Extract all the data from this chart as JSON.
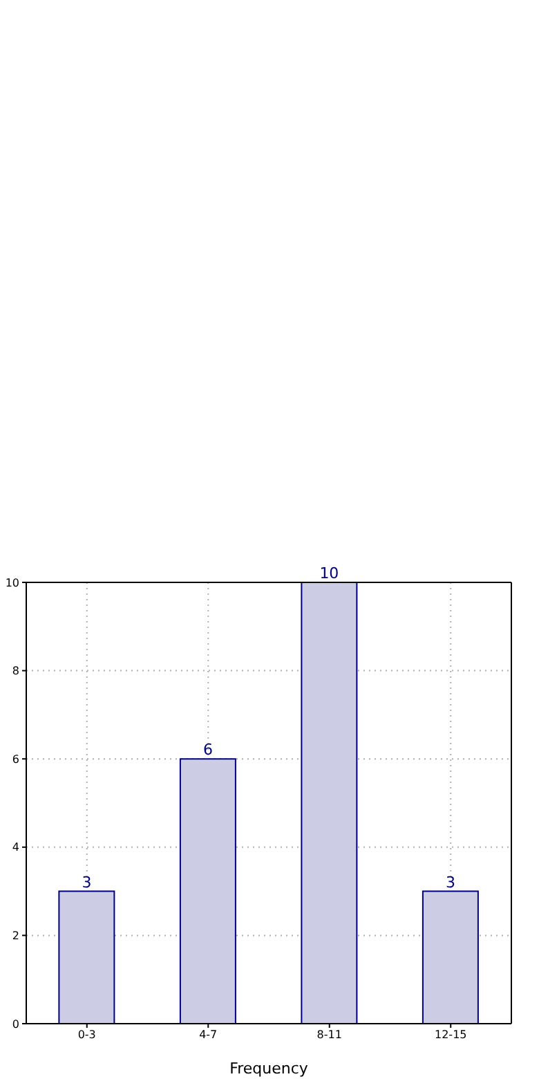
{
  "chart_data": {
    "type": "bar",
    "xlabel": "Frequency",
    "categories": [
      "0-3",
      "4-7",
      "8-11",
      "12-15"
    ],
    "values": [
      3,
      6,
      10,
      3
    ],
    "color": "#ccccE5",
    "ylim": [
      0,
      10
    ],
    "yticks": [
      0,
      2,
      4,
      6,
      8,
      10
    ],
    "grid": true,
    "data_labels": true
  }
}
